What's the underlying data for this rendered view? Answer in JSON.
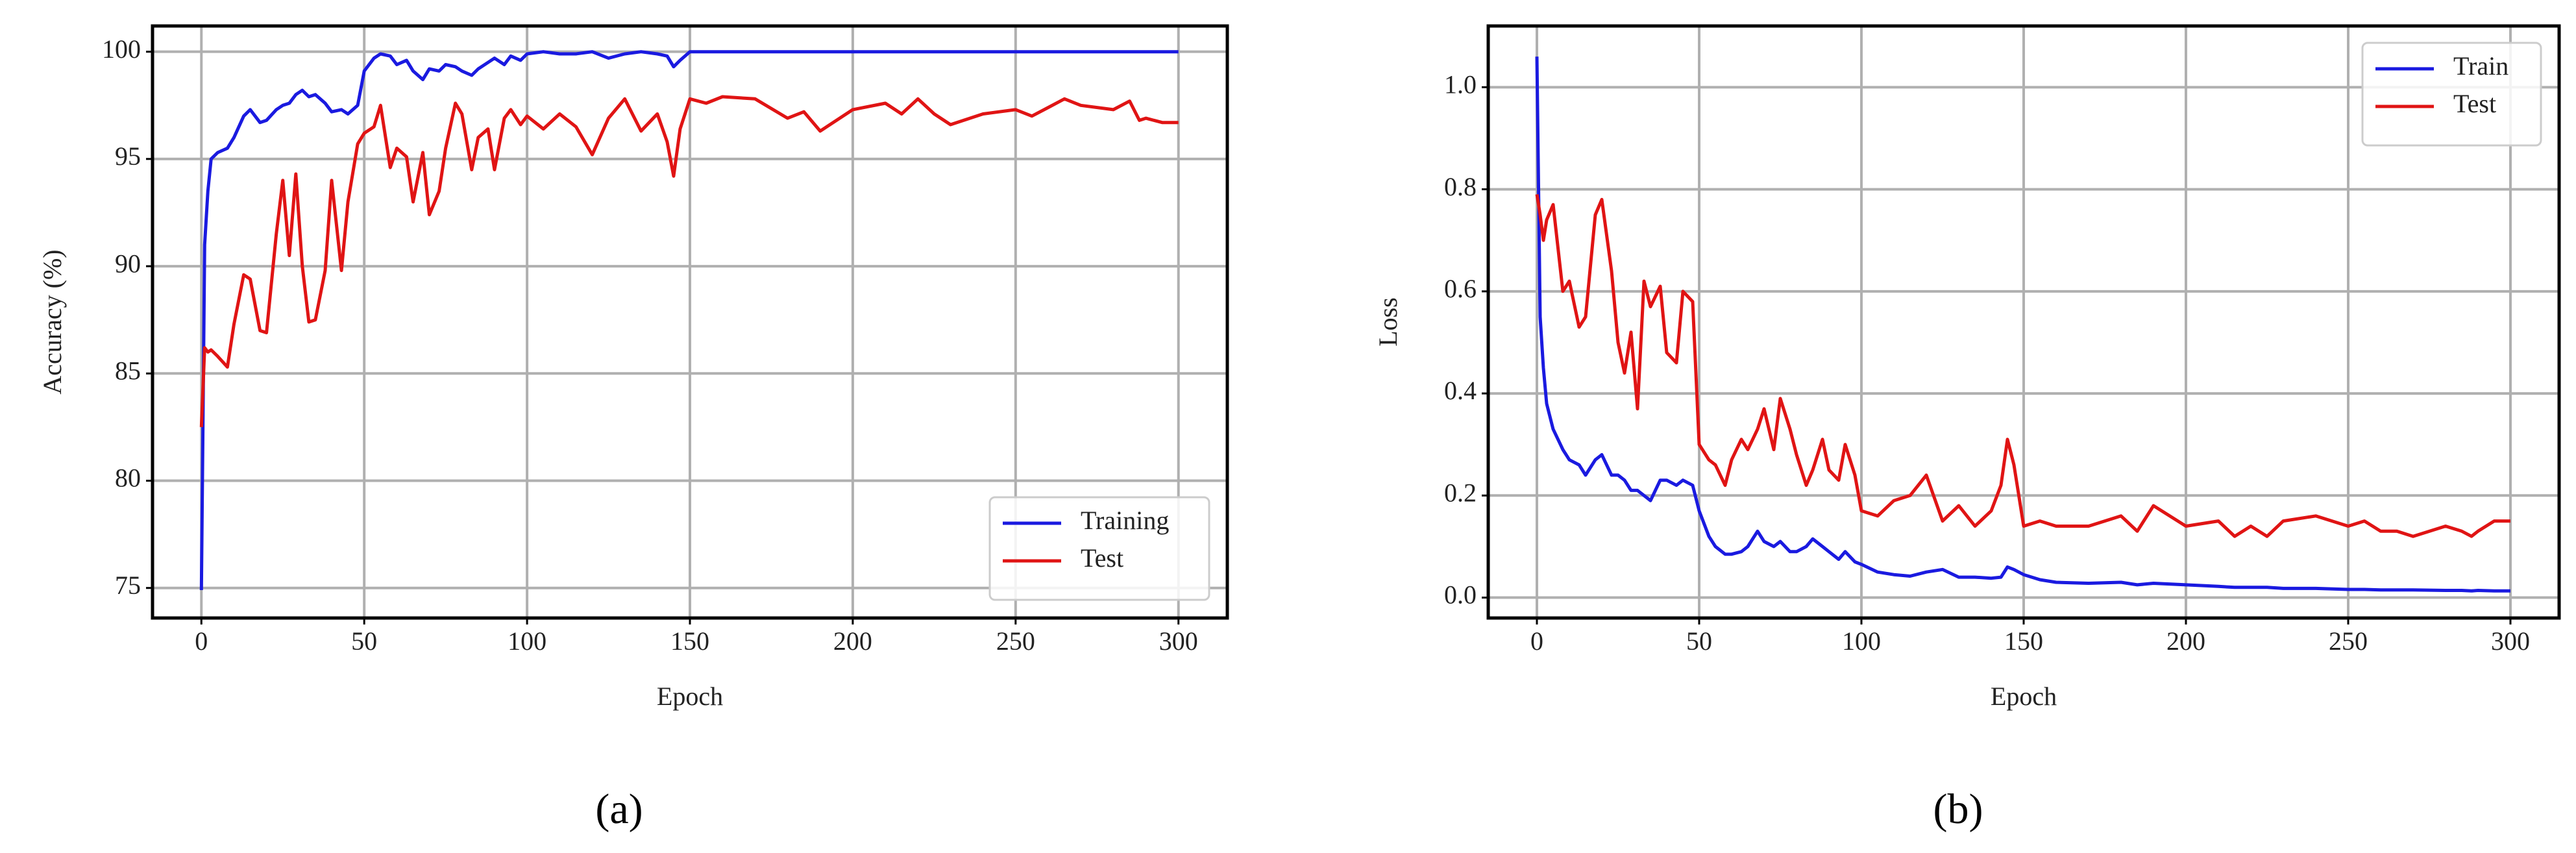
{
  "chart_data": [
    {
      "type": "line",
      "xlabel": "Epoch",
      "ylabel": "Accuracy (%)",
      "caption": "(a)",
      "xlim": [
        -15,
        315
      ],
      "ylim": [
        73.6,
        101.2
      ],
      "xticks": [
        0,
        50,
        100,
        150,
        200,
        250,
        300
      ],
      "yticks": [
        75,
        80,
        85,
        90,
        95,
        100
      ],
      "grid": true,
      "legend": "lower right",
      "x": [
        0,
        1,
        2,
        3,
        5,
        8,
        10,
        13,
        15,
        18,
        20,
        23,
        25,
        27,
        29,
        31,
        33,
        35,
        38,
        40,
        43,
        45,
        48,
        50,
        53,
        55,
        58,
        60,
        63,
        65,
        68,
        70,
        73,
        75,
        78,
        80,
        83,
        85,
        88,
        90,
        93,
        95,
        98,
        100,
        105,
        110,
        115,
        120,
        125,
        130,
        135,
        140,
        143,
        145,
        147,
        150,
        155,
        160,
        170,
        180,
        185,
        190,
        200,
        210,
        215,
        220,
        225,
        230,
        240,
        250,
        255,
        260,
        265,
        270,
        280,
        285,
        288,
        290,
        295,
        300
      ],
      "series": [
        {
          "name": "Training",
          "color": "#1a1ae0",
          "values": [
            74.9,
            91,
            93.5,
            95,
            95.3,
            95.5,
            96,
            97,
            97.3,
            96.7,
            96.8,
            97.3,
            97.5,
            97.6,
            98,
            98.2,
            97.9,
            98,
            97.6,
            97.2,
            97.3,
            97.1,
            97.5,
            99.1,
            99.7,
            99.9,
            99.8,
            99.4,
            99.6,
            99.1,
            98.7,
            99.2,
            99.1,
            99.4,
            99.3,
            99.1,
            98.9,
            99.2,
            99.5,
            99.7,
            99.4,
            99.8,
            99.6,
            99.9,
            100,
            99.9,
            99.9,
            100,
            99.7,
            99.9,
            100,
            99.9,
            99.8,
            99.3,
            99.6,
            100,
            100,
            100,
            100,
            100,
            100,
            100,
            100,
            100,
            100,
            100,
            100,
            100,
            100,
            100,
            100,
            100,
            100,
            100,
            100,
            100,
            100,
            100,
            100,
            100
          ]
        },
        {
          "name": "Test",
          "color": "#e01414",
          "values": [
            82.5,
            86.2,
            86,
            86.1,
            85.8,
            85.3,
            87.3,
            89.6,
            89.4,
            87,
            86.9,
            91.5,
            94,
            90.5,
            94.3,
            90,
            87.4,
            87.5,
            89.8,
            94,
            89.8,
            93,
            95.7,
            96.2,
            96.5,
            97.5,
            94.6,
            95.5,
            95.1,
            93,
            95.3,
            92.4,
            93.5,
            95.5,
            97.6,
            97.1,
            94.5,
            96,
            96.4,
            94.5,
            96.9,
            97.3,
            96.6,
            97,
            96.4,
            97.1,
            96.5,
            95.2,
            96.9,
            97.8,
            96.3,
            97.1,
            95.8,
            94.2,
            96.4,
            97.8,
            97.6,
            97.9,
            97.8,
            96.9,
            97.2,
            96.3,
            97.3,
            97.6,
            97.1,
            97.8,
            97.1,
            96.6,
            97.1,
            97.3,
            97,
            97.4,
            97.8,
            97.5,
            97.3,
            97.7,
            96.8,
            96.9,
            96.7,
            96.7
          ]
        }
      ]
    },
    {
      "type": "line",
      "xlabel": "Epoch",
      "ylabel": "Loss",
      "caption": "(b)",
      "xlim": [
        -15,
        315
      ],
      "ylim": [
        -0.04,
        1.12
      ],
      "xticks": [
        0,
        50,
        100,
        150,
        200,
        250,
        300
      ],
      "yticks": [
        {
          "value": 0,
          "label": "0.0"
        },
        0.2,
        0.4,
        0.6,
        0.8,
        {
          "value": 1,
          "label": "1.0"
        }
      ],
      "grid": true,
      "legend": "upper right",
      "x": [
        0,
        1,
        2,
        3,
        5,
        8,
        10,
        13,
        15,
        18,
        20,
        23,
        25,
        27,
        29,
        31,
        33,
        35,
        38,
        40,
        43,
        45,
        48,
        50,
        53,
        55,
        58,
        60,
        63,
        65,
        68,
        70,
        73,
        75,
        78,
        80,
        83,
        85,
        88,
        90,
        93,
        95,
        98,
        100,
        105,
        110,
        115,
        120,
        125,
        130,
        135,
        140,
        143,
        145,
        147,
        150,
        155,
        160,
        170,
        180,
        185,
        190,
        200,
        210,
        215,
        220,
        225,
        230,
        240,
        250,
        255,
        260,
        265,
        270,
        280,
        285,
        288,
        290,
        295,
        300
      ],
      "series": [
        {
          "name": "Train",
          "color": "#1a1ae0",
          "values": [
            1.06,
            0.55,
            0.45,
            0.38,
            0.33,
            0.29,
            0.27,
            0.26,
            0.24,
            0.27,
            0.28,
            0.24,
            0.24,
            0.23,
            0.21,
            0.21,
            0.2,
            0.19,
            0.23,
            0.23,
            0.22,
            0.23,
            0.22,
            0.17,
            0.12,
            0.1,
            0.085,
            0.085,
            0.09,
            0.1,
            0.13,
            0.11,
            0.1,
            0.11,
            0.09,
            0.09,
            0.1,
            0.115,
            0.1,
            0.09,
            0.075,
            0.09,
            0.07,
            0.065,
            0.05,
            0.045,
            0.042,
            0.05,
            0.055,
            0.04,
            0.04,
            0.038,
            0.04,
            0.06,
            0.055,
            0.045,
            0.035,
            0.03,
            0.028,
            0.03,
            0.025,
            0.028,
            0.025,
            0.022,
            0.02,
            0.02,
            0.02,
            0.018,
            0.018,
            0.016,
            0.016,
            0.015,
            0.015,
            0.015,
            0.014,
            0.014,
            0.013,
            0.014,
            0.013,
            0.013
          ]
        },
        {
          "name": "Test",
          "color": "#e01414",
          "values": [
            0.79,
            0.75,
            0.7,
            0.74,
            0.77,
            0.6,
            0.62,
            0.53,
            0.55,
            0.75,
            0.78,
            0.64,
            0.5,
            0.44,
            0.52,
            0.37,
            0.62,
            0.57,
            0.61,
            0.48,
            0.46,
            0.6,
            0.58,
            0.3,
            0.27,
            0.26,
            0.22,
            0.27,
            0.31,
            0.29,
            0.33,
            0.37,
            0.29,
            0.39,
            0.33,
            0.28,
            0.22,
            0.25,
            0.31,
            0.25,
            0.23,
            0.3,
            0.24,
            0.17,
            0.16,
            0.19,
            0.2,
            0.24,
            0.15,
            0.18,
            0.14,
            0.17,
            0.22,
            0.31,
            0.26,
            0.14,
            0.15,
            0.14,
            0.14,
            0.16,
            0.13,
            0.18,
            0.14,
            0.15,
            0.12,
            0.14,
            0.12,
            0.15,
            0.16,
            0.14,
            0.15,
            0.13,
            0.13,
            0.12,
            0.14,
            0.13,
            0.12,
            0.13,
            0.15,
            0.15
          ]
        }
      ]
    }
  ]
}
